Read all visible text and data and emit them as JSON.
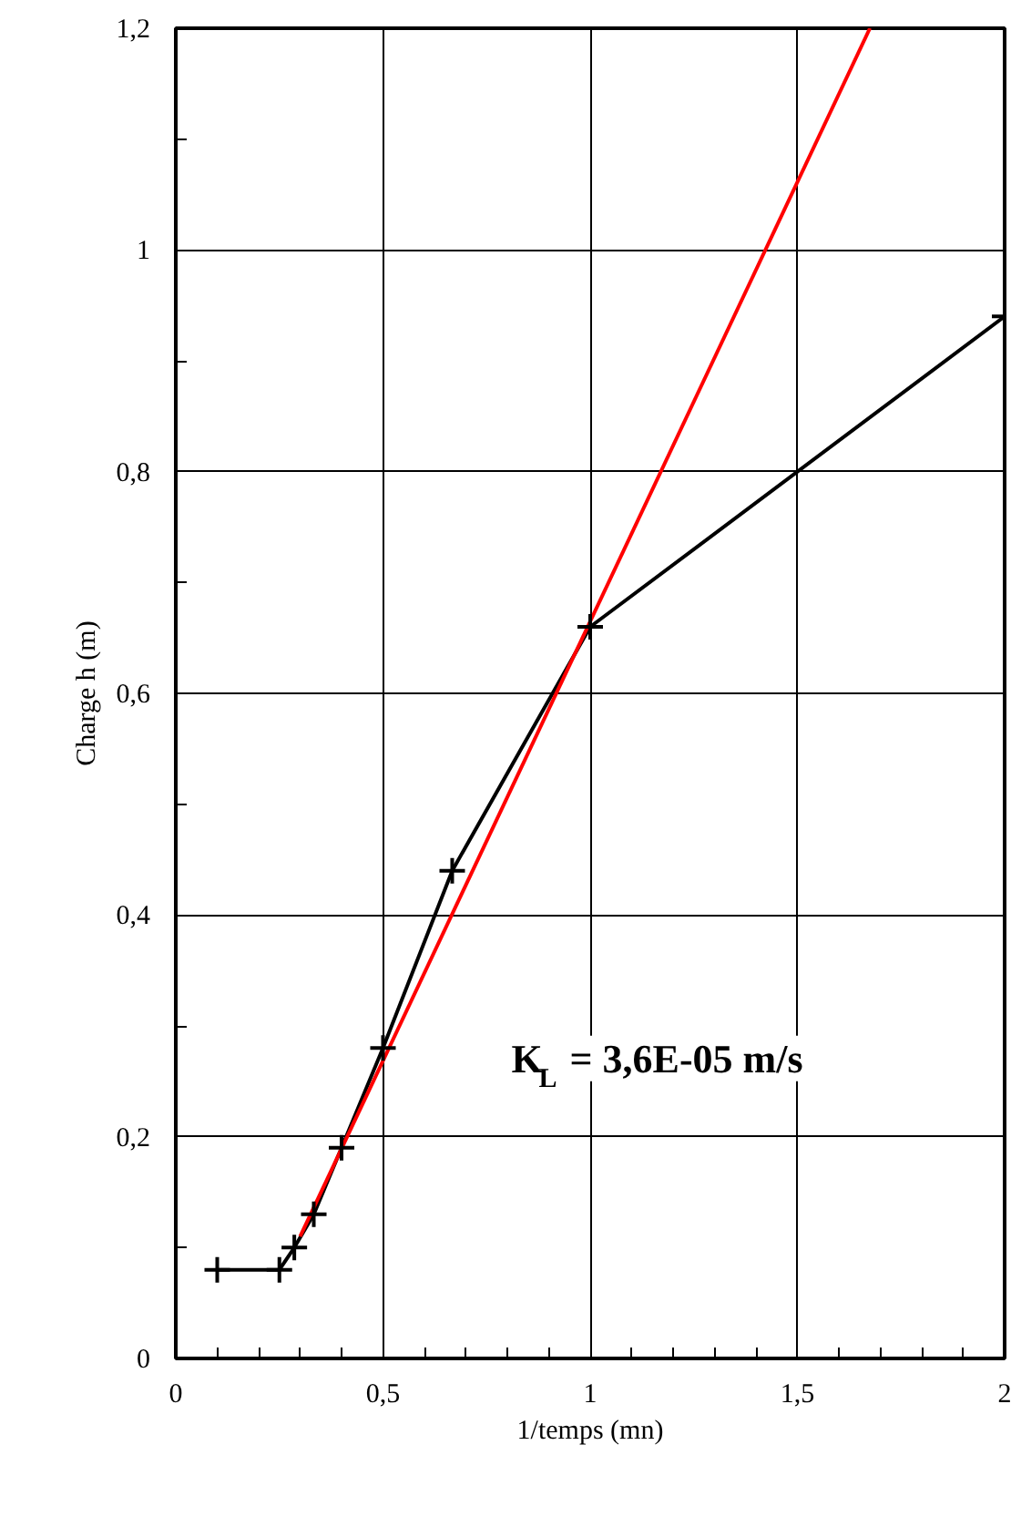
{
  "chart_data": {
    "type": "line",
    "xlabel": "1/temps (mn)",
    "ylabel": "Charge h (m)",
    "xlim": [
      0,
      2
    ],
    "ylim": [
      0,
      1.2
    ],
    "xticks": [
      0,
      {
        "value": 0.5,
        "label": "0,5"
      },
      1,
      {
        "value": 1.5,
        "label": "1,5"
      },
      2
    ],
    "yticks": [
      0,
      {
        "value": 0.2,
        "label": "0,2"
      },
      {
        "value": 0.4,
        "label": "0,4"
      },
      {
        "value": 0.6,
        "label": "0,6"
      },
      {
        "value": 0.8,
        "label": "0,8"
      },
      1,
      {
        "value": 1.2,
        "label": "1,2"
      }
    ],
    "grid": true,
    "series": [
      {
        "color": "#000000",
        "marker": "cross",
        "x": [
          0.1,
          0.25,
          0.286,
          0.333,
          0.4,
          0.5,
          0.667,
          1,
          2
        ],
        "values": [
          0.08,
          0.08,
          0.1,
          0.13,
          0.19,
          0.28,
          0.44,
          0.66,
          0.94
        ]
      },
      {
        "color": "#ff0000",
        "marker": "none",
        "x": [
          0.3,
          1.675
        ],
        "values": [
          0.11,
          1.2
        ]
      }
    ],
    "annotations": [
      "K$_{L}$ = 3,6E-05 m/s"
    ]
  }
}
